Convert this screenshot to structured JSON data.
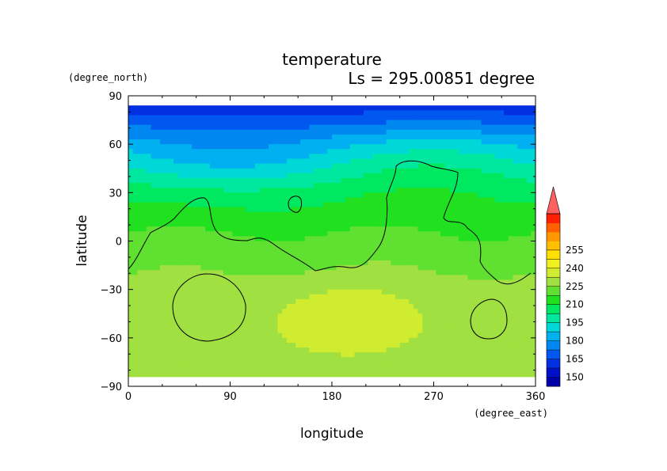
{
  "chart_data": {
    "type": "heatmap",
    "title": "temperature",
    "subtitle": "Ls = 295.00851 degree",
    "xlabel": "longitude",
    "ylabel": "latitude",
    "xunits": "(degree_east)",
    "yunits": "(degree_north)",
    "xlim": [
      0,
      360
    ],
    "ylim": [
      -90,
      90
    ],
    "data_lat_range": [
      -84,
      84
    ],
    "x_ticks": [
      "0",
      "90",
      "180",
      "270",
      "360"
    ],
    "y_ticks": [
      "90",
      "60",
      "30",
      "0",
      "−30",
      "−60",
      "−90"
    ],
    "colorbar": {
      "min": 142.5,
      "step": 7.5,
      "levels": [
        150,
        157.5,
        165,
        172.5,
        180,
        187.5,
        195,
        202.5,
        210,
        217.5,
        225,
        232.5,
        240,
        247.5,
        255
      ],
      "tick_labels": [
        "150",
        "165",
        "180",
        "195",
        "210",
        "225",
        "240",
        "255"
      ],
      "colors": [
        "#0000a8",
        "#0010c8",
        "#0030e0",
        "#0058f0",
        "#0088f0",
        "#00b0f0",
        "#00d8d8",
        "#00e8a0",
        "#00e860",
        "#20e020",
        "#60e030",
        "#a0e040",
        "#d0ec30",
        "#f0f020",
        "#ffe000",
        "#ffc000",
        "#ff9800",
        "#ff6000",
        "#ff2000",
        "#ff6060"
      ],
      "extend": "max"
    },
    "temperature_field_description_levels": {
      "north_polar_cap": 146,
      "lat_60": 177,
      "lat_30": 200,
      "equator": 212,
      "lat_minus30": 220,
      "southern_basin_max": 232
    }
  }
}
